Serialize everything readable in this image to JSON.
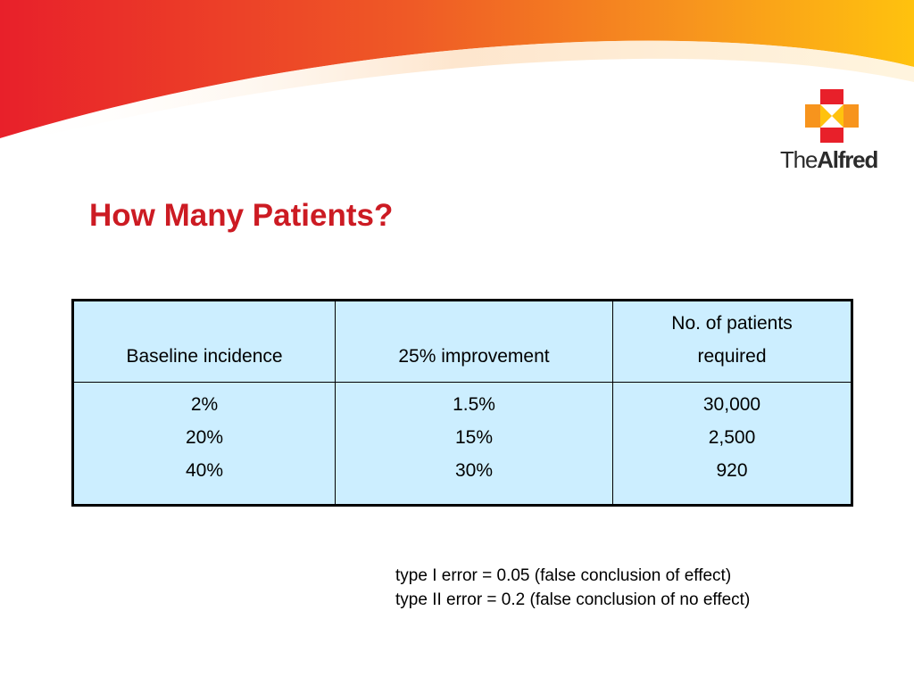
{
  "slide": {
    "title": "How Many Patients?"
  },
  "logo": {
    "text_prefix": "The",
    "text_bold": "Alfred",
    "icon": "cross-icon"
  },
  "table": {
    "headers": [
      "Baseline incidence",
      "25% improvement",
      "No. of patients required"
    ],
    "columns": [
      [
        "2%",
        "20%",
        "40%"
      ],
      [
        "1.5%",
        "15%",
        "30%"
      ],
      [
        "30,000",
        "2,500",
        "920"
      ]
    ]
  },
  "notes": [
    "type I error = 0.05 (false conclusion of effect)",
    "type II error = 0.2 (false conclusion of no effect)"
  ],
  "colors": {
    "title": "#cc1b23",
    "table_background": "#cceeff",
    "banner_start": "#e8202a",
    "banner_end": "#ffc20e"
  }
}
